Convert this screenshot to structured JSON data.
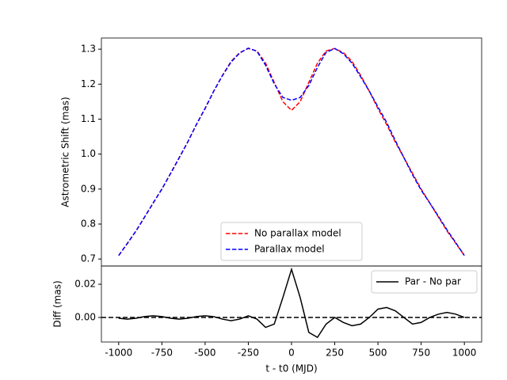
{
  "chart_data": [
    {
      "type": "line",
      "ylabel": "Astrometric Shift (mas)",
      "x": [
        -1000,
        -950,
        -900,
        -850,
        -800,
        -750,
        -700,
        -650,
        -600,
        -550,
        -500,
        -450,
        -400,
        -350,
        -300,
        -250,
        -200,
        -150,
        -100,
        -50,
        0,
        50,
        100,
        150,
        200,
        250,
        300,
        350,
        400,
        450,
        500,
        550,
        600,
        650,
        700,
        750,
        800,
        850,
        900,
        950,
        1000
      ],
      "series": [
        {
          "name": "No parallax model",
          "color": "#ff0000",
          "dash": true,
          "values": [
            0.71,
            0.745,
            0.78,
            0.82,
            0.86,
            0.9,
            0.945,
            0.99,
            1.035,
            1.085,
            1.13,
            1.18,
            1.225,
            1.265,
            1.29,
            1.302,
            1.295,
            1.26,
            1.205,
            1.15,
            1.125,
            1.15,
            1.205,
            1.26,
            1.295,
            1.302,
            1.29,
            1.265,
            1.225,
            1.18,
            1.13,
            1.085,
            1.035,
            0.99,
            0.945,
            0.9,
            0.86,
            0.82,
            0.78,
            0.745,
            0.71
          ]
        },
        {
          "name": "Parallax model",
          "color": "#0000ff",
          "dash": true,
          "values": [
            0.71,
            0.744,
            0.78,
            0.82,
            0.861,
            0.9,
            0.944,
            0.989,
            1.035,
            1.085,
            1.131,
            1.18,
            1.224,
            1.263,
            1.289,
            1.303,
            1.294,
            1.254,
            1.201,
            1.162,
            1.154,
            1.162,
            1.196,
            1.248,
            1.291,
            1.302,
            1.287,
            1.26,
            1.221,
            1.18,
            1.135,
            1.091,
            1.039,
            0.99,
            0.941,
            0.897,
            0.86,
            0.822,
            0.783,
            0.747,
            0.71
          ]
        }
      ],
      "xlim": [
        -1100,
        1100
      ],
      "ylim": [
        0.68,
        1.332
      ],
      "yticks": [
        0.7,
        0.8,
        0.9,
        {
          "value": 1,
          "label": "1.0"
        },
        1.1,
        1.2,
        1.3
      ],
      "legend": "lower center"
    },
    {
      "type": "line",
      "xlabel": "t - t0 (MJD)",
      "ylabel": "Diff (mas)",
      "x": [
        -1000,
        -950,
        -900,
        -850,
        -800,
        -750,
        -700,
        -650,
        -600,
        -550,
        -500,
        -450,
        -400,
        -350,
        -300,
        -250,
        -200,
        -150,
        -100,
        -50,
        0,
        50,
        100,
        150,
        200,
        250,
        300,
        350,
        400,
        450,
        500,
        550,
        600,
        650,
        700,
        750,
        800,
        850,
        900,
        950,
        1000
      ],
      "series": [
        {
          "name": "Par - No par",
          "color": "#000000",
          "dash": false,
          "values": [
            -0.0005,
            -0.001,
            -0.0005,
            0.0005,
            0.001,
            0.0005,
            -0.0005,
            -0.001,
            -0.0005,
            0.0005,
            0.001,
            0.0005,
            -0.001,
            -0.002,
            -0.001,
            0.001,
            -0.001,
            -0.006,
            -0.004,
            0.012,
            0.029,
            0.012,
            -0.009,
            -0.012,
            -0.004,
            0,
            -0.003,
            -0.005,
            -0.004,
            0,
            0.005,
            0.006,
            0.004,
            0,
            -0.004,
            -0.003,
            0,
            0.002,
            0.003,
            0.002,
            0
          ]
        }
      ],
      "reference_line": 0,
      "xlim": [
        -1100,
        1100
      ],
      "xticks": [
        -1000,
        -750,
        -500,
        -250,
        0,
        250,
        500,
        750,
        1000
      ],
      "ylim": [
        -0.0148,
        0.031
      ],
      "yticks": [
        {
          "value": 0,
          "label": "0.00"
        },
        0.02
      ],
      "legend": "upper right"
    }
  ]
}
